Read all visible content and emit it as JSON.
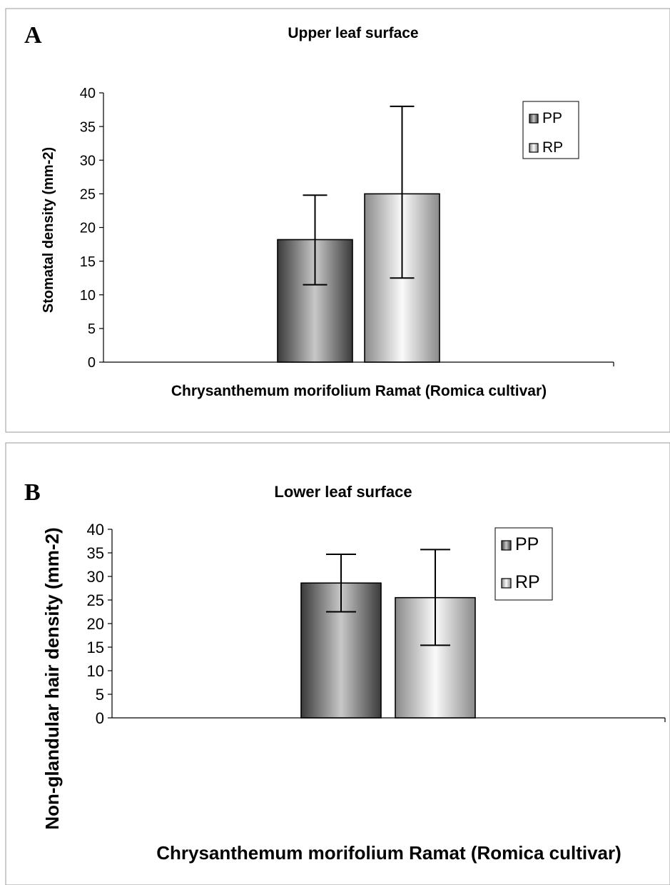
{
  "colors": {
    "pp_dark": "#3a3a3a",
    "pp_light": "#c8c8c8",
    "rp_dark": "#8a8a8a",
    "rp_light": "#fafafa",
    "frame": "#9a9a9a",
    "axis": "#000000"
  },
  "chart_data": [
    {
      "type": "bar",
      "panel_label": "A",
      "title": "Upper leaf surface",
      "xlabel": "Chrysanthemum morifolium Ramat (Romica cultivar)",
      "ylabel": "Stomatal density (mm-2)",
      "categories": [
        "Chrysanthemum morifolium Ramat (Romica cultivar)"
      ],
      "ylim": [
        0,
        40
      ],
      "yticks": [
        "0",
        "5",
        "10",
        "15",
        "20",
        "25",
        "30",
        "35",
        "40"
      ],
      "grid": false,
      "legend_position": "top-right",
      "series": [
        {
          "name": "PP",
          "values": [
            18.2
          ],
          "error_low": [
            11.5
          ],
          "error_high": [
            24.8
          ]
        },
        {
          "name": "RP",
          "values": [
            25.0
          ],
          "error_low": [
            12.5
          ],
          "error_high": [
            38.0
          ]
        }
      ]
    },
    {
      "type": "bar",
      "panel_label": "B",
      "title": "Lower leaf surface",
      "xlabel": "Chrysanthemum morifolium Ramat (Romica cultivar)",
      "ylabel": "Non-glandular hair density (mm-2)",
      "categories": [
        "Chrysanthemum morifolium Ramat (Romica cultivar)"
      ],
      "ylim": [
        0,
        40
      ],
      "yticks": [
        "0",
        "5",
        "10",
        "15",
        "20",
        "25",
        "30",
        "35",
        "40"
      ],
      "grid": false,
      "legend_position": "top-right",
      "series": [
        {
          "name": "PP",
          "values": [
            28.6
          ],
          "error_low": [
            22.5
          ],
          "error_high": [
            34.7
          ]
        },
        {
          "name": "RP",
          "values": [
            25.5
          ],
          "error_low": [
            15.4
          ],
          "error_high": [
            35.7
          ]
        }
      ]
    }
  ]
}
